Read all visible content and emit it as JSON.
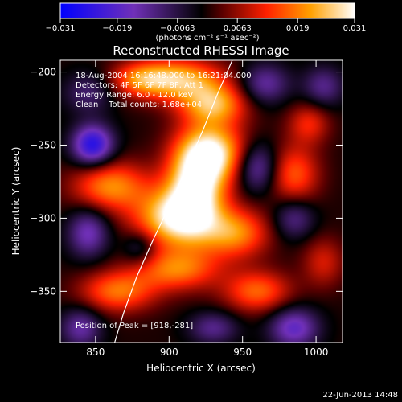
{
  "chart_data": {
    "type": "heatmap",
    "title": "Reconstructed RHESSI Image",
    "xlabel": "Heliocentric X (arcsec)",
    "ylabel": "Heliocentric Y (arcsec)",
    "xlim": [
      826,
      1018
    ],
    "ylim": [
      -385,
      -192
    ],
    "x_ticks": [
      850,
      900,
      950,
      1000
    ],
    "x_tick_labels": [
      "850",
      "900",
      "950",
      "1000"
    ],
    "y_ticks": [
      -200,
      -250,
      -300,
      -350
    ],
    "y_tick_labels": [
      "−200",
      "−250",
      "−300",
      "−350"
    ],
    "colorbar": {
      "label": "(photons cm⁻² s⁻¹ asec⁻²)",
      "range": [
        -0.031,
        0.031
      ],
      "ticks": [
        -0.031,
        -0.019,
        -0.0063,
        0.0063,
        0.019,
        0.031
      ],
      "tick_labels": [
        "−0.031",
        "−0.019",
        "−0.0063",
        "0.0063",
        "0.019",
        "0.031"
      ],
      "colormap": "blue-purple-black-red-orange-yellow-white"
    },
    "annotations": [
      "18-Aug-2004 16:16:48.000 to 16:21:04.000",
      "Detectors: 4F 5F 6F 7F 8F, Att 1",
      "Energy Range: 6.0 - 12.0 keV",
      "Clean    Total counts: 1.68e+04"
    ],
    "peak_label": "Position of Peak = [918,-281]",
    "peak": {
      "x": 918,
      "y": -281
    },
    "limb_line": [
      [
        863,
        -385
      ],
      [
        869,
        -365
      ],
      [
        878,
        -340
      ],
      [
        889,
        -315
      ],
      [
        901,
        -290
      ],
      [
        912,
        -265
      ],
      [
        923,
        -240
      ],
      [
        933,
        -215
      ],
      [
        943,
        -192
      ]
    ],
    "sources": [
      {
        "x": 918,
        "y": -281,
        "value": 0.031,
        "sx": 14,
        "sy": 22
      },
      {
        "x": 930,
        "y": -255,
        "value": 0.026,
        "sx": 16,
        "sy": 14
      },
      {
        "x": 900,
        "y": -300,
        "value": 0.024,
        "sx": 18,
        "sy": 14
      },
      {
        "x": 945,
        "y": -310,
        "value": 0.02,
        "sx": 16,
        "sy": 12
      },
      {
        "x": 905,
        "y": -335,
        "value": 0.018,
        "sx": 20,
        "sy": 10
      },
      {
        "x": 905,
        "y": -205,
        "value": 0.024,
        "sx": 22,
        "sy": 10
      },
      {
        "x": 930,
        "y": -222,
        "value": 0.022,
        "sx": 16,
        "sy": 10
      },
      {
        "x": 860,
        "y": -278,
        "value": 0.02,
        "sx": 18,
        "sy": 12
      },
      {
        "x": 865,
        "y": -350,
        "value": 0.018,
        "sx": 18,
        "sy": 10
      },
      {
        "x": 960,
        "y": -350,
        "value": 0.017,
        "sx": 16,
        "sy": 10
      },
      {
        "x": 985,
        "y": -270,
        "value": 0.016,
        "sx": 12,
        "sy": 14
      },
      {
        "x": 995,
        "y": -235,
        "value": 0.012,
        "sx": 10,
        "sy": 10
      },
      {
        "x": 1005,
        "y": -330,
        "value": 0.01,
        "sx": 10,
        "sy": 12
      },
      {
        "x": 880,
        "y": -205,
        "value": 0.012,
        "sx": 14,
        "sy": 8
      },
      {
        "x": 845,
        "y": -214,
        "value": -0.01,
        "sx": 12,
        "sy": 10
      },
      {
        "x": 848,
        "y": -250,
        "value": -0.026,
        "sx": 10,
        "sy": 10
      },
      {
        "x": 845,
        "y": -310,
        "value": -0.016,
        "sx": 10,
        "sy": 12
      },
      {
        "x": 840,
        "y": -375,
        "value": -0.014,
        "sx": 10,
        "sy": 10
      },
      {
        "x": 960,
        "y": -265,
        "value": -0.016,
        "sx": 10,
        "sy": 12
      },
      {
        "x": 985,
        "y": -300,
        "value": -0.012,
        "sx": 10,
        "sy": 10
      },
      {
        "x": 985,
        "y": -375,
        "value": -0.018,
        "sx": 12,
        "sy": 10
      },
      {
        "x": 965,
        "y": -208,
        "value": -0.014,
        "sx": 12,
        "sy": 10
      },
      {
        "x": 1005,
        "y": -210,
        "value": -0.012,
        "sx": 10,
        "sy": 10
      },
      {
        "x": 880,
        "y": -320,
        "value": -0.01,
        "sx": 8,
        "sy": 8
      },
      {
        "x": 930,
        "y": -375,
        "value": -0.012,
        "sx": 12,
        "sy": 8
      }
    ]
  },
  "footer": {
    "date": "22-Jun-2013 14:48"
  }
}
